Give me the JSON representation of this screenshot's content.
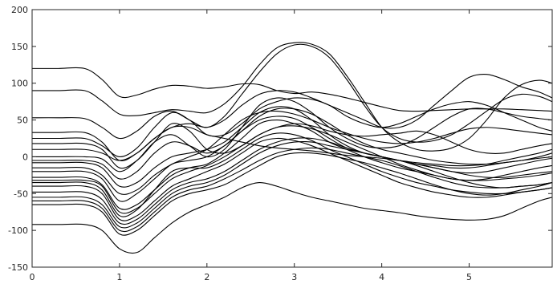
{
  "chart_data": {
    "type": "line",
    "title": "",
    "xlabel": "",
    "ylabel": "",
    "xlim": [
      0,
      5.95
    ],
    "ylim": [
      -150,
      200
    ],
    "xticks": [
      0,
      1,
      2,
      3,
      4,
      5
    ],
    "yticks": [
      -150,
      -100,
      -50,
      0,
      50,
      100,
      150,
      200
    ],
    "x_tick_labels": [
      "0",
      "1",
      "2",
      "3",
      "4",
      "5"
    ],
    "y_tick_labels": [
      "-150",
      "-100",
      "-50",
      "0",
      "50",
      "100",
      "150",
      "200"
    ],
    "grid": false,
    "legend": "none",
    "line_color": "#000000",
    "x": [
      0,
      0.3,
      0.6,
      0.8,
      1.0,
      1.2,
      1.4,
      1.6,
      1.8,
      2.0,
      2.2,
      2.4,
      2.6,
      2.8,
      3.0,
      3.2,
      3.4,
      3.6,
      3.8,
      4.0,
      4.2,
      4.4,
      4.6,
      4.8,
      5.0,
      5.2,
      5.4,
      5.6,
      5.8,
      5.95
    ],
    "series": [
      {
        "values": [
          120,
          120,
          120,
          105,
          82,
          84,
          92,
          97,
          96,
          93,
          95,
          99,
          98,
          90,
          86,
          88,
          85,
          80,
          74,
          68,
          63,
          62,
          63,
          64,
          65,
          65,
          65,
          64,
          63,
          62
        ]
      },
      {
        "values": [
          90,
          90,
          90,
          76,
          58,
          56,
          60,
          64,
          62,
          60,
          72,
          95,
          125,
          148,
          155,
          153,
          140,
          110,
          75,
          40,
          20,
          10,
          8,
          12,
          25,
          50,
          80,
          98,
          104,
          100
        ]
      },
      {
        "values": [
          53,
          53,
          52,
          40,
          25,
          35,
          55,
          62,
          50,
          40,
          55,
          85,
          115,
          140,
          152,
          150,
          135,
          105,
          70,
          40,
          25,
          20,
          22,
          30,
          45,
          62,
          78,
          85,
          82,
          75
        ]
      },
      {
        "values": [
          33,
          33,
          33,
          20,
          -5,
          5,
          25,
          40,
          45,
          40,
          50,
          70,
          85,
          90,
          88,
          80,
          70,
          60,
          50,
          40,
          40,
          50,
          70,
          90,
          108,
          112,
          105,
          95,
          88,
          80
        ]
      },
      {
        "values": [
          25,
          25,
          25,
          15,
          0,
          12,
          40,
          60,
          50,
          30,
          30,
          45,
          65,
          75,
          80,
          78,
          70,
          55,
          45,
          40,
          45,
          55,
          65,
          72,
          75,
          70,
          60,
          50,
          40,
          35
        ]
      },
      {
        "values": [
          18,
          18,
          18,
          10,
          -15,
          -5,
          20,
          45,
          35,
          10,
          5,
          15,
          30,
          40,
          45,
          42,
          35,
          30,
          28,
          30,
          32,
          35,
          30,
          20,
          10,
          5,
          5,
          10,
          15,
          18
        ]
      },
      {
        "values": [
          10,
          10,
          10,
          5,
          -5,
          5,
          25,
          40,
          40,
          30,
          25,
          20,
          15,
          12,
          10,
          8,
          5,
          2,
          0,
          -2,
          -5,
          -8,
          -10,
          -12,
          -12,
          -10,
          -5,
          0,
          5,
          10
        ]
      },
      {
        "values": [
          0,
          0,
          0,
          -3,
          -20,
          -5,
          20,
          30,
          15,
          0,
          10,
          40,
          70,
          80,
          75,
          60,
          40,
          25,
          15,
          12,
          15,
          25,
          40,
          55,
          65,
          65,
          60,
          55,
          52,
          50
        ]
      },
      {
        "values": [
          -5,
          -5,
          -5,
          -10,
          -30,
          -20,
          5,
          20,
          15,
          5,
          15,
          35,
          55,
          65,
          65,
          58,
          45,
          30,
          18,
          10,
          5,
          0,
          -5,
          -8,
          -10,
          -10,
          -8,
          -5,
          -2,
          0
        ]
      },
      {
        "values": [
          -8,
          -8,
          -8,
          -15,
          -40,
          -35,
          -15,
          0,
          5,
          10,
          20,
          40,
          60,
          68,
          65,
          50,
          30,
          15,
          5,
          0,
          -5,
          -10,
          -15,
          -20,
          -22,
          -20,
          -15,
          -10,
          -5,
          -2
        ]
      },
      {
        "values": [
          -15,
          -15,
          -15,
          -25,
          -50,
          -45,
          -25,
          -10,
          0,
          10,
          30,
          50,
          60,
          62,
          58,
          50,
          40,
          32,
          25,
          20,
          18,
          20,
          25,
          32,
          38,
          40,
          38,
          35,
          32,
          30
        ]
      },
      {
        "values": [
          -20,
          -20,
          -20,
          -30,
          -60,
          -50,
          -30,
          -10,
          -5,
          0,
          15,
          35,
          50,
          55,
          52,
          40,
          25,
          12,
          5,
          0,
          -5,
          -10,
          -15,
          -20,
          -25,
          -28,
          -28,
          -25,
          -22,
          -20
        ]
      },
      {
        "values": [
          -28,
          -28,
          -28,
          -38,
          -70,
          -65,
          -45,
          -25,
          -15,
          -10,
          5,
          25,
          45,
          50,
          45,
          35,
          20,
          10,
          0,
          -8,
          -15,
          -20,
          -25,
          -30,
          -32,
          -30,
          -25,
          -20,
          -15,
          -12
        ]
      },
      {
        "values": [
          -32,
          -32,
          -32,
          -40,
          -75,
          -70,
          -50,
          -30,
          -20,
          -12,
          0,
          15,
          30,
          40,
          42,
          38,
          30,
          20,
          10,
          0,
          -10,
          -18,
          -25,
          -30,
          -32,
          -32,
          -30,
          -28,
          -25,
          -22
        ]
      },
      {
        "values": [
          -35,
          -35,
          -35,
          -45,
          -80,
          -72,
          -45,
          -20,
          -15,
          -15,
          -5,
          10,
          25,
          32,
          30,
          22,
          10,
          0,
          -10,
          -20,
          -28,
          -35,
          -40,
          -45,
          -48,
          -50,
          -50,
          -48,
          -45,
          -42
        ]
      },
      {
        "values": [
          -40,
          -40,
          -40,
          -50,
          -85,
          -80,
          -60,
          -40,
          -30,
          -20,
          -10,
          5,
          20,
          25,
          22,
          15,
          5,
          -5,
          -15,
          -25,
          -35,
          -42,
          -48,
          -52,
          -55,
          -55,
          -52,
          -48,
          -45,
          -42
        ]
      },
      {
        "values": [
          -48,
          -48,
          -48,
          -58,
          -90,
          -85,
          -65,
          -45,
          -35,
          -30,
          -20,
          -5,
          10,
          20,
          25,
          25,
          20,
          12,
          5,
          0,
          -5,
          -10,
          -12,
          -15,
          -15,
          -12,
          -8,
          -5,
          0,
          5
        ]
      },
      {
        "values": [
          -55,
          -55,
          -55,
          -65,
          -95,
          -90,
          -70,
          -50,
          -40,
          -35,
          -25,
          -10,
          5,
          15,
          20,
          20,
          15,
          10,
          5,
          0,
          -5,
          -12,
          -20,
          -28,
          -35,
          -40,
          -42,
          -40,
          -38,
          -35
        ]
      },
      {
        "values": [
          -60,
          -60,
          -60,
          -70,
          -100,
          -95,
          -75,
          -55,
          -45,
          -40,
          -30,
          -18,
          -5,
          5,
          10,
          12,
          10,
          5,
          0,
          -5,
          -12,
          -20,
          -28,
          -35,
          -40,
          -42,
          -42,
          -40,
          -38,
          -35
        ]
      },
      {
        "values": [
          -65,
          -65,
          -65,
          -75,
          -105,
          -100,
          -80,
          -60,
          -50,
          -45,
          -38,
          -25,
          -12,
          0,
          5,
          5,
          2,
          -3,
          -8,
          -15,
          -22,
          -30,
          -38,
          -45,
          -50,
          -52,
          -50,
          -45,
          -40,
          -35
        ]
      },
      {
        "values": [
          -92,
          -92,
          -92,
          -100,
          -125,
          -130,
          -110,
          -90,
          -75,
          -65,
          -55,
          -42,
          -35,
          -40,
          -48,
          -55,
          -60,
          -65,
          -70,
          -73,
          -76,
          -80,
          -83,
          -85,
          -86,
          -85,
          -80,
          -70,
          -60,
          -55
        ]
      }
    ]
  }
}
